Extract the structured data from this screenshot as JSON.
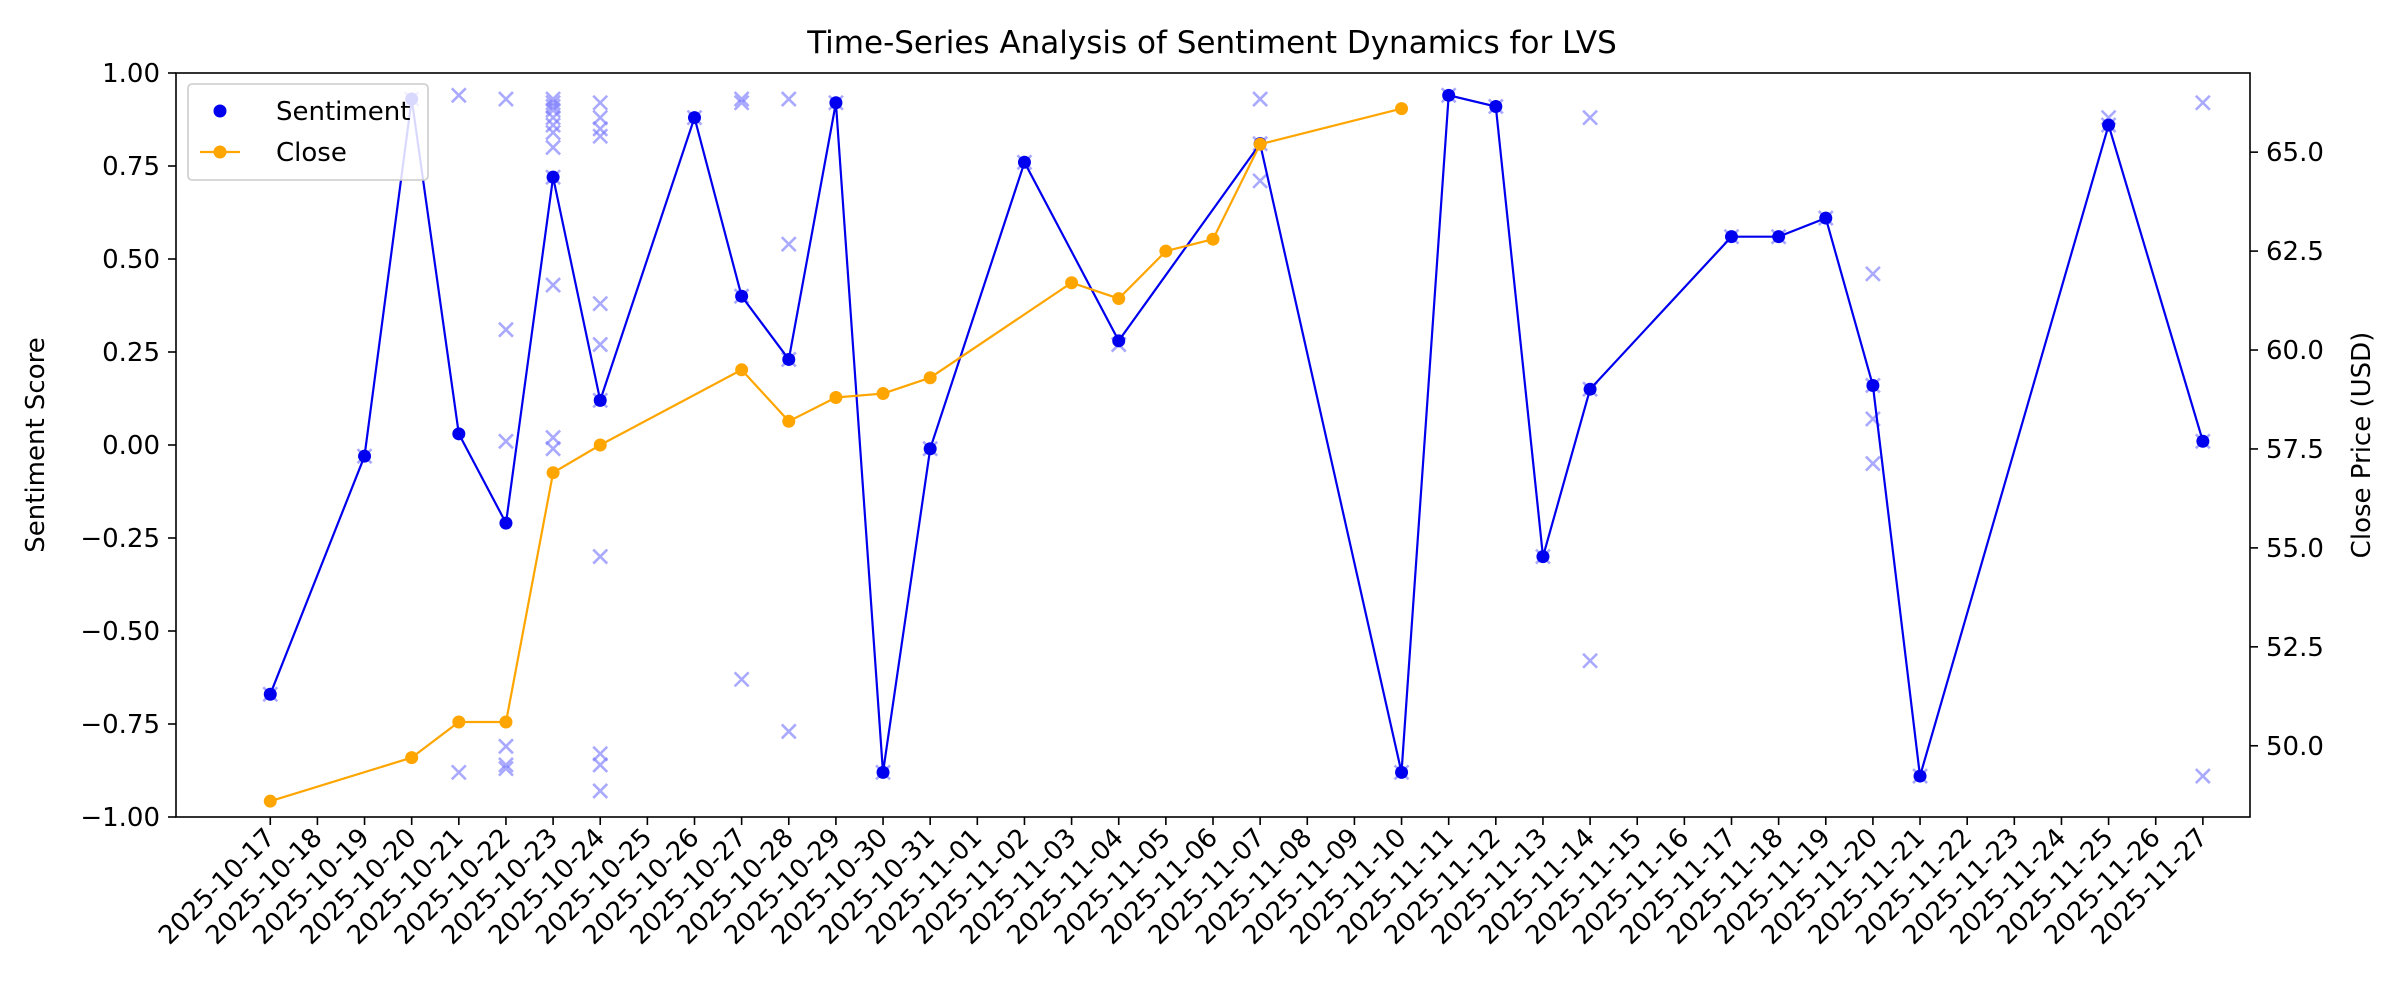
{
  "chart_data": {
    "type": "line",
    "title": "Time-Series Analysis of Sentiment Dynamics for LVS",
    "ylabel": "Sentiment Score",
    "y2label": "Close Price (USD)",
    "ylim": [
      -1.0,
      1.0
    ],
    "y2lim": [
      48.2,
      67.0
    ],
    "yticks": [
      "1.00",
      "0.75",
      "0.50",
      "0.25",
      "0.00",
      "−0.25",
      "−0.50",
      "−0.75",
      "−1.00"
    ],
    "yticks_values": [
      1.0,
      0.75,
      0.5,
      0.25,
      0.0,
      -0.25,
      -0.5,
      -0.75,
      -1.0
    ],
    "y2ticks": [
      "50.0",
      "52.5",
      "55.0",
      "57.5",
      "60.0",
      "62.5",
      "65.0"
    ],
    "y2ticks_values": [
      50.0,
      52.5,
      55.0,
      57.5,
      60.0,
      62.5,
      65.0
    ],
    "x_range": [
      "2025-10-15",
      "2025-11-28"
    ],
    "x_ticks": [
      "2025-10-17",
      "2025-10-18",
      "2025-10-19",
      "2025-10-20",
      "2025-10-21",
      "2025-10-22",
      "2025-10-23",
      "2025-10-24",
      "2025-10-25",
      "2025-10-26",
      "2025-10-27",
      "2025-10-28",
      "2025-10-29",
      "2025-10-30",
      "2025-10-31",
      "2025-11-01",
      "2025-11-02",
      "2025-11-03",
      "2025-11-04",
      "2025-11-05",
      "2025-11-06",
      "2025-11-07",
      "2025-11-08",
      "2025-11-09",
      "2025-11-10",
      "2025-11-11",
      "2025-11-12",
      "2025-11-13",
      "2025-11-14",
      "2025-11-15",
      "2025-11-16",
      "2025-11-17",
      "2025-11-18",
      "2025-11-19",
      "2025-11-20",
      "2025-11-21",
      "2025-11-22",
      "2025-11-23",
      "2025-11-24",
      "2025-11-25",
      "2025-11-26",
      "2025-11-27"
    ],
    "legend_position": "top-left",
    "grid": false,
    "series": [
      {
        "name": "Sentiment",
        "axis": "left",
        "color": "#0000ee",
        "points": [
          [
            "2025-10-17",
            -0.67
          ],
          [
            "2025-10-19",
            -0.03
          ],
          [
            "2025-10-20",
            0.93
          ],
          [
            "2025-10-21",
            0.03
          ],
          [
            "2025-10-22",
            -0.21
          ],
          [
            "2025-10-23",
            0.72
          ],
          [
            "2025-10-24",
            0.12
          ],
          [
            "2025-10-26",
            0.88
          ],
          [
            "2025-10-27",
            0.4
          ],
          [
            "2025-10-28",
            0.23
          ],
          [
            "2025-10-29",
            0.92
          ],
          [
            "2025-10-30",
            -0.88
          ],
          [
            "2025-10-31",
            -0.01
          ],
          [
            "2025-11-02",
            0.76
          ],
          [
            "2025-11-04",
            0.28
          ],
          [
            "2025-11-07",
            0.81
          ],
          [
            "2025-11-10",
            -0.88
          ],
          [
            "2025-11-11",
            0.94
          ],
          [
            "2025-11-12",
            0.91
          ],
          [
            "2025-11-13",
            -0.3
          ],
          [
            "2025-11-14",
            0.15
          ],
          [
            "2025-11-17",
            0.56
          ],
          [
            "2025-11-18",
            0.56
          ],
          [
            "2025-11-19",
            0.61
          ],
          [
            "2025-11-20",
            0.16
          ],
          [
            "2025-11-21",
            -0.89
          ],
          [
            "2025-11-25",
            0.86
          ],
          [
            "2025-11-27",
            0.01
          ]
        ]
      },
      {
        "name": "Close",
        "axis": "right",
        "color": "#ffa500",
        "points": [
          [
            "2025-10-17",
            48.6
          ],
          [
            "2025-10-20",
            49.7
          ],
          [
            "2025-10-21",
            50.6
          ],
          [
            "2025-10-22",
            50.6
          ],
          [
            "2025-10-23",
            56.9
          ],
          [
            "2025-10-24",
            57.6
          ],
          [
            "2025-10-27",
            59.5
          ],
          [
            "2025-10-28",
            58.2
          ],
          [
            "2025-10-29",
            58.8
          ],
          [
            "2025-10-30",
            58.9
          ],
          [
            "2025-10-31",
            59.3
          ],
          [
            "2025-11-03",
            61.7
          ],
          [
            "2025-11-04",
            61.3
          ],
          [
            "2025-11-05",
            62.5
          ],
          [
            "2025-11-06",
            62.8
          ],
          [
            "2025-11-07",
            65.2
          ],
          [
            "2025-11-10",
            66.1
          ]
        ]
      }
    ],
    "article_scores": {
      "marker": "x",
      "color": "#7b7bff",
      "points": [
        [
          "2025-10-17",
          -0.67
        ],
        [
          "2025-10-19",
          -0.03
        ],
        [
          "2025-10-20",
          0.93
        ],
        [
          "2025-10-21",
          0.94
        ],
        [
          "2025-10-21",
          -0.88
        ],
        [
          "2025-10-22",
          0.93
        ],
        [
          "2025-10-22",
          0.31
        ],
        [
          "2025-10-22",
          0.01
        ],
        [
          "2025-10-22",
          -0.81
        ],
        [
          "2025-10-22",
          -0.86
        ],
        [
          "2025-10-22",
          -0.87
        ],
        [
          "2025-10-23",
          0.93
        ],
        [
          "2025-10-23",
          0.92
        ],
        [
          "2025-10-23",
          0.91
        ],
        [
          "2025-10-23",
          0.9
        ],
        [
          "2025-10-23",
          0.88
        ],
        [
          "2025-10-23",
          0.86
        ],
        [
          "2025-10-23",
          0.84
        ],
        [
          "2025-10-23",
          0.8
        ],
        [
          "2025-10-23",
          0.72
        ],
        [
          "2025-10-23",
          0.43
        ],
        [
          "2025-10-23",
          0.02
        ],
        [
          "2025-10-23",
          -0.01
        ],
        [
          "2025-10-24",
          0.92
        ],
        [
          "2025-10-24",
          0.88
        ],
        [
          "2025-10-24",
          0.85
        ],
        [
          "2025-10-24",
          0.83
        ],
        [
          "2025-10-24",
          0.38
        ],
        [
          "2025-10-24",
          0.27
        ],
        [
          "2025-10-24",
          0.12
        ],
        [
          "2025-10-24",
          -0.3
        ],
        [
          "2025-10-24",
          -0.83
        ],
        [
          "2025-10-24",
          -0.86
        ],
        [
          "2025-10-24",
          -0.93
        ],
        [
          "2025-10-26",
          0.88
        ],
        [
          "2025-10-27",
          0.93
        ],
        [
          "2025-10-27",
          0.92
        ],
        [
          "2025-10-27",
          0.4
        ],
        [
          "2025-10-27",
          -0.63
        ],
        [
          "2025-10-28",
          0.93
        ],
        [
          "2025-10-28",
          0.54
        ],
        [
          "2025-10-28",
          0.23
        ],
        [
          "2025-10-28",
          -0.77
        ],
        [
          "2025-10-29",
          0.92
        ],
        [
          "2025-10-30",
          -0.88
        ],
        [
          "2025-10-31",
          -0.01
        ],
        [
          "2025-11-02",
          0.76
        ],
        [
          "2025-11-04",
          0.27
        ],
        [
          "2025-11-07",
          0.93
        ],
        [
          "2025-11-07",
          0.81
        ],
        [
          "2025-11-07",
          0.71
        ],
        [
          "2025-11-10",
          -0.88
        ],
        [
          "2025-11-11",
          0.94
        ],
        [
          "2025-11-12",
          0.91
        ],
        [
          "2025-11-13",
          -0.3
        ],
        [
          "2025-11-14",
          0.88
        ],
        [
          "2025-11-14",
          0.15
        ],
        [
          "2025-11-14",
          -0.58
        ],
        [
          "2025-11-17",
          0.56
        ],
        [
          "2025-11-18",
          0.56
        ],
        [
          "2025-11-19",
          0.61
        ],
        [
          "2025-11-20",
          0.46
        ],
        [
          "2025-11-20",
          0.16
        ],
        [
          "2025-11-20",
          0.07
        ],
        [
          "2025-11-20",
          -0.05
        ],
        [
          "2025-11-21",
          -0.89
        ],
        [
          "2025-11-25",
          0.88
        ],
        [
          "2025-11-25",
          0.86
        ],
        [
          "2025-11-27",
          0.92
        ],
        [
          "2025-11-27",
          0.01
        ],
        [
          "2025-11-27",
          -0.89
        ]
      ]
    }
  }
}
